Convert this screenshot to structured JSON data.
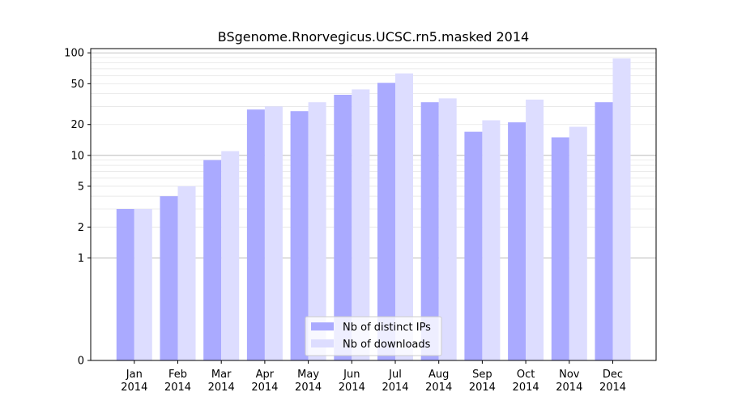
{
  "chart_data": {
    "type": "bar",
    "title": "BSgenome.Rnorvegicus.UCSC.rn5.masked 2014",
    "xlabel": "",
    "ylabel": "",
    "yscale": "symlog",
    "ylim": [
      0,
      110
    ],
    "grid": "horizontal",
    "legend_position": "bottom-center",
    "categories": [
      {
        "month": "Jan",
        "year": "2014"
      },
      {
        "month": "Feb",
        "year": "2014"
      },
      {
        "month": "Mar",
        "year": "2014"
      },
      {
        "month": "Apr",
        "year": "2014"
      },
      {
        "month": "May",
        "year": "2014"
      },
      {
        "month": "Jun",
        "year": "2014"
      },
      {
        "month": "Jul",
        "year": "2014"
      },
      {
        "month": "Aug",
        "year": "2014"
      },
      {
        "month": "Sep",
        "year": "2014"
      },
      {
        "month": "Oct",
        "year": "2014"
      },
      {
        "month": "Nov",
        "year": "2014"
      },
      {
        "month": "Dec",
        "year": "2014"
      }
    ],
    "y_ticks": [
      {
        "value": 0,
        "label": "0"
      },
      {
        "value": 1,
        "label": "1"
      },
      {
        "value": 2,
        "label": "2"
      },
      {
        "value": 5,
        "label": "5"
      },
      {
        "value": 10,
        "label": "10"
      },
      {
        "value": 20,
        "label": "20"
      },
      {
        "value": 50,
        "label": "50"
      },
      {
        "value": 100,
        "label": "100"
      }
    ],
    "series": [
      {
        "name": "Nb of distinct IPs",
        "color": "#aaaaff",
        "values": [
          3,
          4,
          9,
          28,
          27,
          39,
          51,
          33,
          17,
          21,
          15,
          33
        ]
      },
      {
        "name": "Nb of downloads",
        "color": "#ddddff",
        "values": [
          3,
          5,
          11,
          30,
          33,
          44,
          63,
          36,
          22,
          35,
          19,
          88
        ]
      }
    ]
  }
}
